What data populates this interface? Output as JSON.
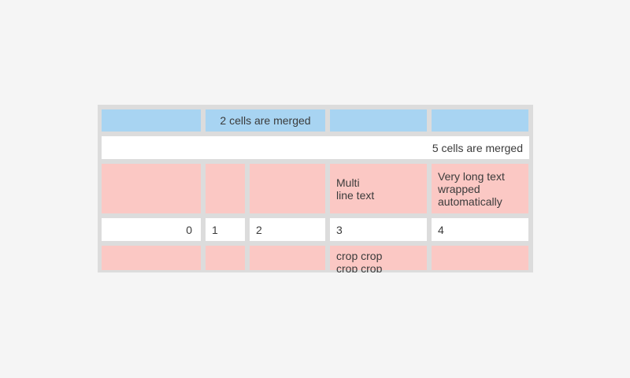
{
  "colors": {
    "page_bg": "#f5f5f5",
    "panel_gray": "#dcdcdc",
    "cell_blue": "#a8d4f2",
    "cell_pink": "#fbc8c4",
    "cell_white": "#ffffff",
    "text_color": "#3b3b3b"
  },
  "table": {
    "rows": [
      {
        "cells": [
          {
            "text": ""
          },
          {
            "text": "2 cells are merged",
            "span": 2
          },
          {
            "text": ""
          },
          {
            "text": ""
          }
        ]
      },
      {
        "cells": [
          {
            "text": "5 cells are merged",
            "span": 5
          }
        ]
      },
      {
        "cells": [
          {
            "text": ""
          },
          {
            "text": ""
          },
          {
            "text": ""
          },
          {
            "text": "Multi\nline text"
          },
          {
            "text": "Very long text wrapped automatically"
          }
        ]
      },
      {
        "cells": [
          {
            "text": "0"
          },
          {
            "text": "1"
          },
          {
            "text": "2"
          },
          {
            "text": "3"
          },
          {
            "text": "4"
          }
        ]
      },
      {
        "cells": [
          {
            "text": ""
          },
          {
            "text": ""
          },
          {
            "text": ""
          },
          {
            "text": "crop crop\ncrop crop"
          },
          {
            "text": ""
          }
        ]
      }
    ]
  }
}
